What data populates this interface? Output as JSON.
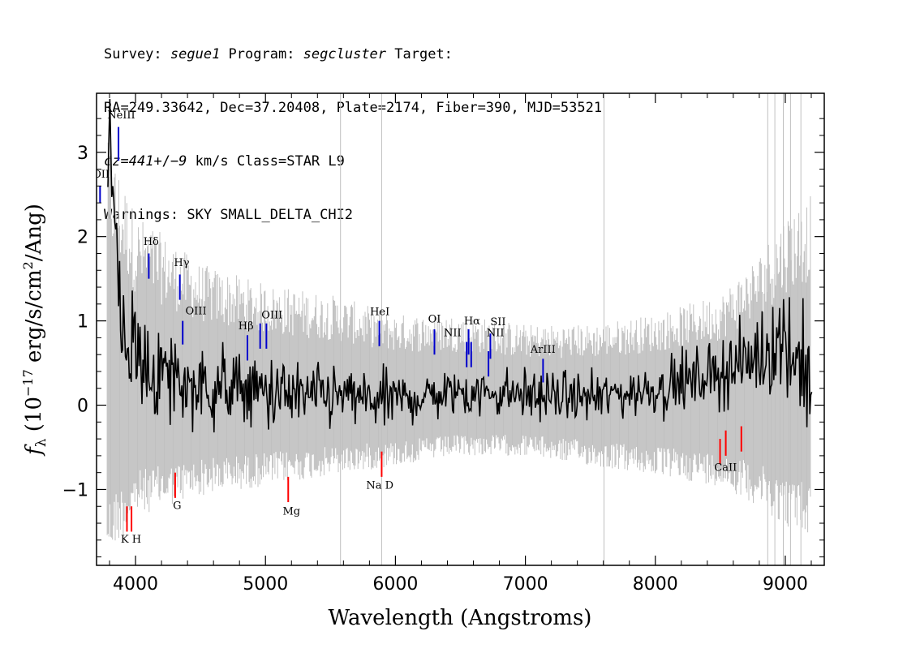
{
  "header": {
    "line1_prefix": "Survey: ",
    "survey": "segue1",
    "line1_mid": " Program: ",
    "program": "segcluster",
    "line1_suffix": " Target:",
    "line2": "RA=249.33642, Dec=37.20408, Plate=2174, Fiber=390, MJD=53521",
    "cz_prefix": "cz=",
    "cz_value": "441",
    "cz_pm": "+/−",
    "cz_err": "9",
    "cz_suffix": " km/s Class=STAR L9",
    "line4": "Warnings: SKY SMALL_DELTA_CHI2"
  },
  "chart_data": {
    "type": "line",
    "xlabel": "Wavelength (Angstroms)",
    "ylabel": "f_λ (10^-17 erg/s/cm^2/Ang)",
    "ylabel_parts": {
      "f": "f",
      "sub": "λ",
      "pre": " (10",
      "exp1": "−17",
      "mid": " erg/s/cm",
      "exp2": "2",
      "post": "/Ang)"
    },
    "xlim": [
      3700,
      9300
    ],
    "ylim": [
      -1.9,
      3.7
    ],
    "x_ticks": [
      4000,
      5000,
      6000,
      7000,
      8000,
      9000
    ],
    "x_tick_labels": [
      "4000",
      "5000",
      "6000",
      "7000",
      "8000",
      "9000"
    ],
    "y_ticks": [
      -1,
      0,
      1,
      2,
      3
    ],
    "y_tick_labels": [
      "−1",
      "0",
      "1",
      "2",
      "3"
    ],
    "series": [
      {
        "role": "error band",
        "color": "#c0c0c0",
        "x": [
          3800,
          4000,
          4500,
          5000,
          5500,
          6000,
          6500,
          7000,
          7500,
          8000,
          8500,
          8800,
          9000,
          9200
        ],
        "lower": [
          -1.5,
          -1.1,
          -0.9,
          -0.8,
          -0.7,
          -0.6,
          -0.5,
          -0.5,
          -0.6,
          -0.7,
          -0.8,
          -1.0,
          -1.2,
          -1.3
        ],
        "upper": [
          2.6,
          1.9,
          1.4,
          1.2,
          1.1,
          0.9,
          0.9,
          0.8,
          0.8,
          0.9,
          1.1,
          1.5,
          1.9,
          2.1
        ]
      },
      {
        "role": "flux",
        "color": "#000000",
        "x": [
          3800,
          3850,
          3900,
          4000,
          4100,
          4300,
          4500,
          4800,
          5000,
          5300,
          5600,
          5900,
          6200,
          6500,
          6800,
          7200,
          7600,
          8000,
          8300,
          8500,
          8700,
          8900,
          9000,
          9200
        ],
        "y": [
          2.9,
          1.9,
          0.9,
          0.6,
          0.4,
          0.3,
          0.2,
          0.2,
          0.15,
          0.1,
          0.1,
          0.05,
          0.1,
          0.15,
          0.15,
          0.1,
          0.1,
          0.2,
          0.3,
          0.4,
          0.5,
          0.7,
          0.8,
          0.3
        ]
      }
    ],
    "emission_lines": [
      {
        "label": "NeIII",
        "x": 3869,
        "y_bottom": 2.9,
        "y_top": 3.3,
        "color": "#0000cc"
      },
      {
        "label": "OII",
        "x": 3727,
        "y_bottom": 2.4,
        "y_top": 2.6,
        "color": "#0000cc"
      },
      {
        "label": "Hδ",
        "x": 4102,
        "y_bottom": 1.5,
        "y_top": 1.8,
        "color": "#0000cc"
      },
      {
        "label": "Hγ",
        "x": 4341,
        "y_bottom": 1.25,
        "y_top": 1.55,
        "color": "#0000cc"
      },
      {
        "label": "OIII",
        "x": 4363,
        "y_bottom": 0.72,
        "y_top": 1.0,
        "color": "#0000cc"
      },
      {
        "label": "Hβ",
        "x": 4861,
        "y_bottom": 0.53,
        "y_top": 0.83,
        "color": "#0000cc"
      },
      {
        "label": "OIII",
        "x": 4959,
        "y_bottom": 0.67,
        "y_top": 0.97,
        "color": "#0000cc"
      },
      {
        "label": "OIII",
        "x": 5007,
        "y_bottom": 0.67,
        "y_top": 0.97,
        "color": "#0000cc"
      },
      {
        "label": "HeI",
        "x": 5876,
        "y_bottom": 0.7,
        "y_top": 1.0,
        "color": "#0000cc"
      },
      {
        "label": "OI",
        "x": 6300,
        "y_bottom": 0.6,
        "y_top": 0.9,
        "color": "#0000cc"
      },
      {
        "label": "NII",
        "x": 6548,
        "y_bottom": 0.45,
        "y_top": 0.75,
        "color": "#0000cc"
      },
      {
        "label": "Hα",
        "x": 6563,
        "y_bottom": 0.6,
        "y_top": 0.9,
        "color": "#0000cc"
      },
      {
        "label": "NII",
        "x": 6583,
        "y_bottom": 0.45,
        "y_top": 0.75,
        "color": "#0000cc"
      },
      {
        "label": "SII",
        "x": 6716,
        "y_bottom": 0.34,
        "y_top": 0.64,
        "color": "#0000cc"
      },
      {
        "label": "SII",
        "x": 6731,
        "y_bottom": 0.55,
        "y_top": 0.85,
        "color": "#0000cc"
      },
      {
        "label": "ArIII",
        "x": 7136,
        "y_bottom": 0.27,
        "y_top": 0.55,
        "color": "#0000cc"
      }
    ],
    "absorption_lines": [
      {
        "label": "K",
        "x": 3934,
        "y_top": -1.2,
        "y_bottom": -1.5,
        "color": "#ff0000"
      },
      {
        "label": "H",
        "x": 3969,
        "y_top": -1.2,
        "y_bottom": -1.5,
        "color": "#ff0000"
      },
      {
        "label": "G",
        "x": 4305,
        "y_top": -0.8,
        "y_bottom": -1.1,
        "color": "#ff0000"
      },
      {
        "label": "Mg",
        "x": 5175,
        "y_top": -0.85,
        "y_bottom": -1.15,
        "color": "#ff0000"
      },
      {
        "label": "Na D",
        "x": 5894,
        "y_top": -0.55,
        "y_bottom": -0.85,
        "color": "#ff0000"
      },
      {
        "label": "CaII",
        "x": 8498,
        "y_top": -0.4,
        "y_bottom": -0.7,
        "color": "#ff0000"
      },
      {
        "label": "CaII",
        "x": 8542,
        "y_top": -0.3,
        "y_bottom": -0.6,
        "color": "#ff0000"
      },
      {
        "label": "CaII",
        "x": 8662,
        "y_top": -0.25,
        "y_bottom": -0.55,
        "color": "#ff0000"
      }
    ],
    "line_labels": [
      {
        "text": "NeIII",
        "x": 3890,
        "y": 3.4
      },
      {
        "text": "OII",
        "x": 3735,
        "y": 2.7
      },
      {
        "text": "Hδ",
        "x": 4120,
        "y": 1.9
      },
      {
        "text": "Hγ",
        "x": 4355,
        "y": 1.65
      },
      {
        "text": "OIII",
        "x": 4465,
        "y": 1.08
      },
      {
        "text": "Hβ",
        "x": 4850,
        "y": 0.9
      },
      {
        "text": "OIII",
        "x": 5050,
        "y": 1.03
      },
      {
        "text": "HeI",
        "x": 5880,
        "y": 1.07
      },
      {
        "text": "OI",
        "x": 6300,
        "y": 0.98
      },
      {
        "text": "NII",
        "x": 6440,
        "y": 0.82
      },
      {
        "text": "Hα",
        "x": 6590,
        "y": 0.96
      },
      {
        "text": "SII",
        "x": 6790,
        "y": 0.95
      },
      {
        "text": "NII",
        "x": 6770,
        "y": 0.82
      },
      {
        "text": "ArIII",
        "x": 7135,
        "y": 0.62
      },
      {
        "text": "K H",
        "x": 3965,
        "y": -1.63
      },
      {
        "text": "G",
        "x": 4320,
        "y": -1.23
      },
      {
        "text": "Mg",
        "x": 5200,
        "y": -1.3
      },
      {
        "text": "Na  D",
        "x": 5880,
        "y": -0.99
      },
      {
        "text": "CaII",
        "x": 8540,
        "y": -0.78
      }
    ],
    "grid": false,
    "legend": "none"
  }
}
